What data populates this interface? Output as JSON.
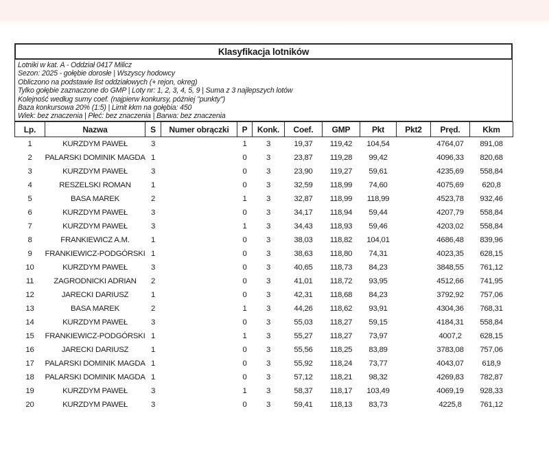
{
  "title": "Klasyfikacja lotników",
  "info_lines": [
    "Lotniki w kat. A - Oddział 0417 Milicz",
    "Sezon: 2025 - gołębie dorosłe  |  Wszyscy hodowcy",
    "Obliczono na podstawie list oddziałowych (+ rejon, okreg)",
    "Tylko gołębie zaznaczone do GMP  |  Loty nr: 1, 2, 3, 4, 5, 9  |  Suma z 3 najlepszych lotów",
    "Kolejność według sumy coef. (najpierw konkursy, później \"punkty\")",
    "Baza konkursowa 20% (1:5) | Limit kkm na gołębia: 450",
    "Wiek: bez znaczenia  |  Płeć: bez znaczenia  |  Barwa: bez znaczenia"
  ],
  "table": {
    "columns": [
      "Lp.",
      "Nazwa",
      "S",
      "Numer obrączki",
      "P",
      "Konk.",
      "Coef.",
      "GMP",
      "Pkt",
      "Pkt2",
      "Pręd.",
      "Kkm"
    ],
    "rows": [
      [
        "1",
        "KURZDYM PAWEŁ",
        "3",
        "",
        "1",
        "3",
        "19,37",
        "119,42",
        "104,54",
        "",
        "4764,07",
        "891,08"
      ],
      [
        "2",
        "PALARSKI DOMINIK MAGDA",
        "1",
        "",
        "0",
        "3",
        "23,87",
        "119,28",
        "99,42",
        "",
        "4096,33",
        "820,68"
      ],
      [
        "3",
        "KURZDYM PAWEŁ",
        "3",
        "",
        "0",
        "3",
        "23,90",
        "119,27",
        "59,61",
        "",
        "4235,69",
        "558,84"
      ],
      [
        "4",
        "RESZELSKI ROMAN",
        "1",
        "",
        "0",
        "3",
        "32,59",
        "118,99",
        "74,60",
        "",
        "4075,69",
        "620,8"
      ],
      [
        "5",
        "BASA MAREK",
        "2",
        "",
        "1",
        "3",
        "32,87",
        "118,99",
        "118,99",
        "",
        "4523,78",
        "932,46"
      ],
      [
        "6",
        "KURZDYM PAWEŁ",
        "3",
        "",
        "0",
        "3",
        "34,17",
        "118,94",
        "59,44",
        "",
        "4207,79",
        "558,84"
      ],
      [
        "7",
        "KURZDYM PAWEŁ",
        "3",
        "",
        "1",
        "3",
        "34,43",
        "118,93",
        "59,46",
        "",
        "4203,02",
        "558,84"
      ],
      [
        "8",
        "FRANKIEWICZ A.M.",
        "1",
        "",
        "0",
        "3",
        "38,03",
        "118,82",
        "104,01",
        "",
        "4686,48",
        "839,96"
      ],
      [
        "9",
        "FRANKIEWICZ-PODGÓRSKI",
        "1",
        "",
        "0",
        "3",
        "38,63",
        "118,80",
        "74,31",
        "",
        "4023,35",
        "628,15"
      ],
      [
        "10",
        "KURZDYM PAWEŁ",
        "3",
        "",
        "0",
        "3",
        "40,65",
        "118,73",
        "84,23",
        "",
        "3848,55",
        "761,12"
      ],
      [
        "11",
        "ZAGRODNICKI ADRIAN",
        "2",
        "",
        "0",
        "3",
        "41,01",
        "118,72",
        "93,95",
        "",
        "4512,66",
        "741,95"
      ],
      [
        "12",
        "JARECKI DARIUSZ",
        "1",
        "",
        "0",
        "3",
        "42,31",
        "118,68",
        "84,23",
        "",
        "3792,92",
        "757,06"
      ],
      [
        "13",
        "BASA MAREK",
        "2",
        "",
        "1",
        "3",
        "44,26",
        "118,62",
        "93,91",
        "",
        "4304,36",
        "768,31"
      ],
      [
        "14",
        "KURZDYM PAWEŁ",
        "3",
        "",
        "0",
        "3",
        "55,03",
        "118,27",
        "59,15",
        "",
        "4184,31",
        "558,84"
      ],
      [
        "15",
        "FRANKIEWICZ-PODGÓRSKI",
        "1",
        "",
        "1",
        "3",
        "55,27",
        "118,27",
        "73,97",
        "",
        "4007,2",
        "628,15"
      ],
      [
        "16",
        "JARECKI DARIUSZ",
        "1",
        "",
        "0",
        "3",
        "55,56",
        "118,25",
        "83,89",
        "",
        "3783,08",
        "757,06"
      ],
      [
        "17",
        "PALARSKI DOMINIK MAGDA",
        "1",
        "",
        "0",
        "3",
        "55,92",
        "118,24",
        "73,77",
        "",
        "4043,07",
        "618,9"
      ],
      [
        "18",
        "PALARSKI DOMINIK MAGDA",
        "1",
        "",
        "0",
        "3",
        "57,12",
        "118,21",
        "98,32",
        "",
        "4269,83",
        "782,87"
      ],
      [
        "19",
        "KURZDYM PAWEŁ",
        "3",
        "",
        "1",
        "3",
        "58,37",
        "118,17",
        "103,49",
        "",
        "4069,19",
        "928,33"
      ],
      [
        "20",
        "KURZDYM PAWEŁ",
        "3",
        "",
        "0",
        "3",
        "59,41",
        "118,13",
        "83,73",
        "",
        "4225,8",
        "761,12"
      ]
    ]
  },
  "colors": {
    "top_band": "#fcf1ee",
    "border": "#2b2b2b",
    "text": "#1b1b1b",
    "background": "#ffffff"
  }
}
